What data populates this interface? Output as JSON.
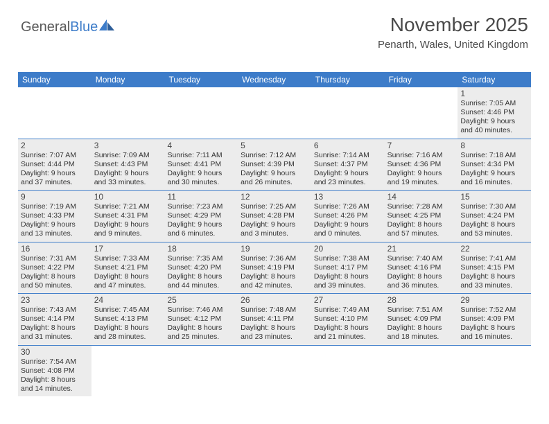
{
  "brand": {
    "part1": "General",
    "part2": "Blue"
  },
  "title": "November 2025",
  "subtitle": "Penarth, Wales, United Kingdom",
  "colors": {
    "header_bg": "#3d7cc9",
    "shade_bg": "#ececec",
    "rule": "#3d7cc9",
    "text": "#333333",
    "title_text": "#4a4a4a"
  },
  "dow": [
    "Sunday",
    "Monday",
    "Tuesday",
    "Wednesday",
    "Thursday",
    "Friday",
    "Saturday"
  ],
  "weeks": [
    [
      null,
      null,
      null,
      null,
      null,
      null,
      {
        "n": "1",
        "sr": "Sunrise: 7:05 AM",
        "ss": "Sunset: 4:46 PM",
        "d1": "Daylight: 9 hours",
        "d2": "and 40 minutes."
      }
    ],
    [
      {
        "n": "2",
        "sr": "Sunrise: 7:07 AM",
        "ss": "Sunset: 4:44 PM",
        "d1": "Daylight: 9 hours",
        "d2": "and 37 minutes."
      },
      {
        "n": "3",
        "sr": "Sunrise: 7:09 AM",
        "ss": "Sunset: 4:43 PM",
        "d1": "Daylight: 9 hours",
        "d2": "and 33 minutes."
      },
      {
        "n": "4",
        "sr": "Sunrise: 7:11 AM",
        "ss": "Sunset: 4:41 PM",
        "d1": "Daylight: 9 hours",
        "d2": "and 30 minutes."
      },
      {
        "n": "5",
        "sr": "Sunrise: 7:12 AM",
        "ss": "Sunset: 4:39 PM",
        "d1": "Daylight: 9 hours",
        "d2": "and 26 minutes."
      },
      {
        "n": "6",
        "sr": "Sunrise: 7:14 AM",
        "ss": "Sunset: 4:37 PM",
        "d1": "Daylight: 9 hours",
        "d2": "and 23 minutes."
      },
      {
        "n": "7",
        "sr": "Sunrise: 7:16 AM",
        "ss": "Sunset: 4:36 PM",
        "d1": "Daylight: 9 hours",
        "d2": "and 19 minutes."
      },
      {
        "n": "8",
        "sr": "Sunrise: 7:18 AM",
        "ss": "Sunset: 4:34 PM",
        "d1": "Daylight: 9 hours",
        "d2": "and 16 minutes."
      }
    ],
    [
      {
        "n": "9",
        "sr": "Sunrise: 7:19 AM",
        "ss": "Sunset: 4:33 PM",
        "d1": "Daylight: 9 hours",
        "d2": "and 13 minutes."
      },
      {
        "n": "10",
        "sr": "Sunrise: 7:21 AM",
        "ss": "Sunset: 4:31 PM",
        "d1": "Daylight: 9 hours",
        "d2": "and 9 minutes."
      },
      {
        "n": "11",
        "sr": "Sunrise: 7:23 AM",
        "ss": "Sunset: 4:29 PM",
        "d1": "Daylight: 9 hours",
        "d2": "and 6 minutes."
      },
      {
        "n": "12",
        "sr": "Sunrise: 7:25 AM",
        "ss": "Sunset: 4:28 PM",
        "d1": "Daylight: 9 hours",
        "d2": "and 3 minutes."
      },
      {
        "n": "13",
        "sr": "Sunrise: 7:26 AM",
        "ss": "Sunset: 4:26 PM",
        "d1": "Daylight: 9 hours",
        "d2": "and 0 minutes."
      },
      {
        "n": "14",
        "sr": "Sunrise: 7:28 AM",
        "ss": "Sunset: 4:25 PM",
        "d1": "Daylight: 8 hours",
        "d2": "and 57 minutes."
      },
      {
        "n": "15",
        "sr": "Sunrise: 7:30 AM",
        "ss": "Sunset: 4:24 PM",
        "d1": "Daylight: 8 hours",
        "d2": "and 53 minutes."
      }
    ],
    [
      {
        "n": "16",
        "sr": "Sunrise: 7:31 AM",
        "ss": "Sunset: 4:22 PM",
        "d1": "Daylight: 8 hours",
        "d2": "and 50 minutes."
      },
      {
        "n": "17",
        "sr": "Sunrise: 7:33 AM",
        "ss": "Sunset: 4:21 PM",
        "d1": "Daylight: 8 hours",
        "d2": "and 47 minutes."
      },
      {
        "n": "18",
        "sr": "Sunrise: 7:35 AM",
        "ss": "Sunset: 4:20 PM",
        "d1": "Daylight: 8 hours",
        "d2": "and 44 minutes."
      },
      {
        "n": "19",
        "sr": "Sunrise: 7:36 AM",
        "ss": "Sunset: 4:19 PM",
        "d1": "Daylight: 8 hours",
        "d2": "and 42 minutes."
      },
      {
        "n": "20",
        "sr": "Sunrise: 7:38 AM",
        "ss": "Sunset: 4:17 PM",
        "d1": "Daylight: 8 hours",
        "d2": "and 39 minutes."
      },
      {
        "n": "21",
        "sr": "Sunrise: 7:40 AM",
        "ss": "Sunset: 4:16 PM",
        "d1": "Daylight: 8 hours",
        "d2": "and 36 minutes."
      },
      {
        "n": "22",
        "sr": "Sunrise: 7:41 AM",
        "ss": "Sunset: 4:15 PM",
        "d1": "Daylight: 8 hours",
        "d2": "and 33 minutes."
      }
    ],
    [
      {
        "n": "23",
        "sr": "Sunrise: 7:43 AM",
        "ss": "Sunset: 4:14 PM",
        "d1": "Daylight: 8 hours",
        "d2": "and 31 minutes."
      },
      {
        "n": "24",
        "sr": "Sunrise: 7:45 AM",
        "ss": "Sunset: 4:13 PM",
        "d1": "Daylight: 8 hours",
        "d2": "and 28 minutes."
      },
      {
        "n": "25",
        "sr": "Sunrise: 7:46 AM",
        "ss": "Sunset: 4:12 PM",
        "d1": "Daylight: 8 hours",
        "d2": "and 25 minutes."
      },
      {
        "n": "26",
        "sr": "Sunrise: 7:48 AM",
        "ss": "Sunset: 4:11 PM",
        "d1": "Daylight: 8 hours",
        "d2": "and 23 minutes."
      },
      {
        "n": "27",
        "sr": "Sunrise: 7:49 AM",
        "ss": "Sunset: 4:10 PM",
        "d1": "Daylight: 8 hours",
        "d2": "and 21 minutes."
      },
      {
        "n": "28",
        "sr": "Sunrise: 7:51 AM",
        "ss": "Sunset: 4:09 PM",
        "d1": "Daylight: 8 hours",
        "d2": "and 18 minutes."
      },
      {
        "n": "29",
        "sr": "Sunrise: 7:52 AM",
        "ss": "Sunset: 4:09 PM",
        "d1": "Daylight: 8 hours",
        "d2": "and 16 minutes."
      }
    ],
    [
      {
        "n": "30",
        "sr": "Sunrise: 7:54 AM",
        "ss": "Sunset: 4:08 PM",
        "d1": "Daylight: 8 hours",
        "d2": "and 14 minutes."
      },
      null,
      null,
      null,
      null,
      null,
      null
    ]
  ]
}
